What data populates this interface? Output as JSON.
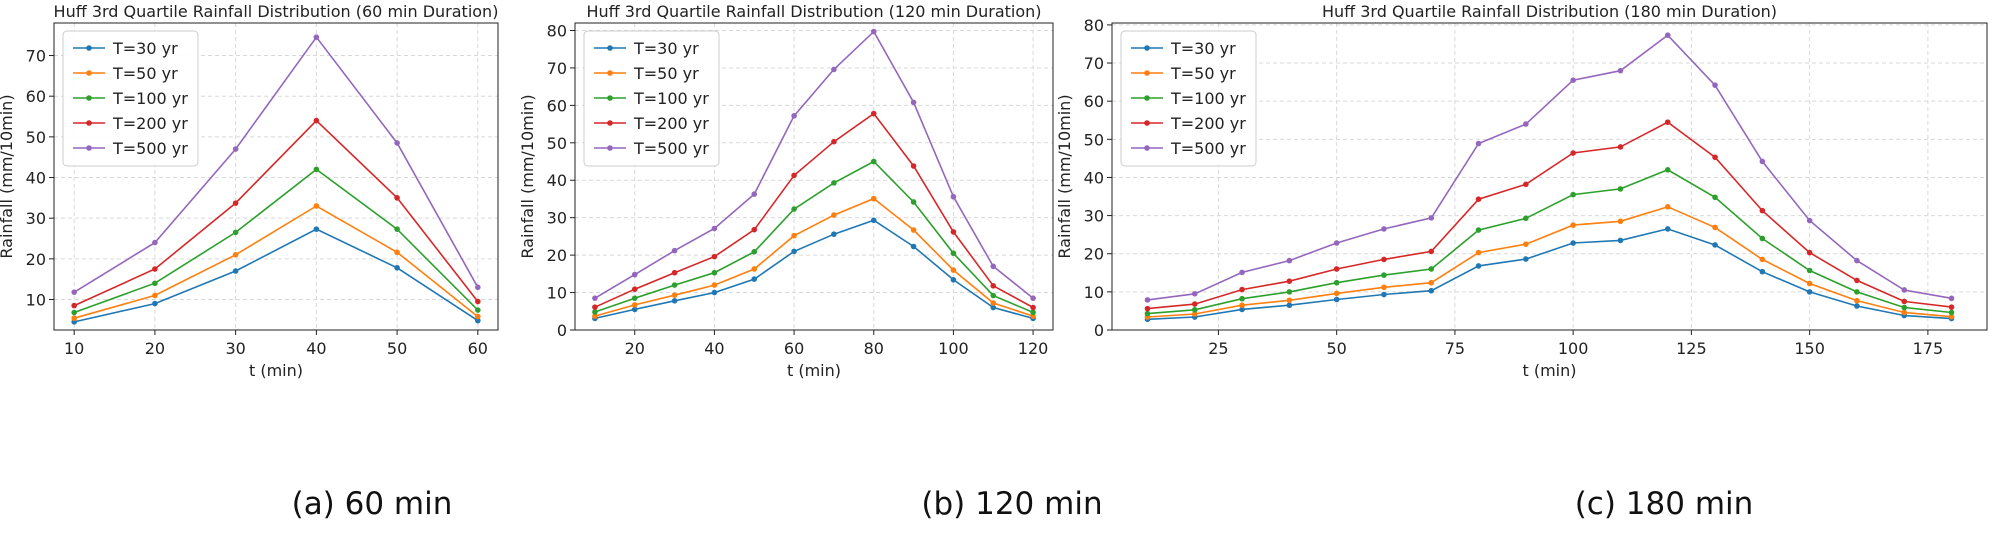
{
  "chart_data": [
    {
      "type": "line",
      "title": "Huff 3rd Quartile Rainfall Distribution (60 min Duration)",
      "xlabel": "t (min)",
      "ylabel": "Rainfall (mm/10min)",
      "caption": "(a) 60 min",
      "x": [
        10,
        20,
        30,
        40,
        50,
        60
      ],
      "xlim": [
        7.5,
        62.5
      ],
      "ylim": [
        2.5,
        78
      ],
      "xticks": [
        10,
        20,
        30,
        40,
        50,
        60
      ],
      "yticks": [
        10,
        20,
        30,
        40,
        50,
        60,
        70
      ],
      "grid": true,
      "legend_position": "top-left",
      "series": [
        {
          "name": "T=30 yr",
          "color": "#1f77b4",
          "values": [
            4.5,
            9,
            17,
            27.3,
            17.8,
            4.8
          ]
        },
        {
          "name": "T=50 yr",
          "color": "#ff7f0e",
          "values": [
            5.4,
            11,
            21,
            33,
            21.6,
            5.8
          ]
        },
        {
          "name": "T=100 yr",
          "color": "#2ca02c",
          "values": [
            6.8,
            14,
            26.5,
            42,
            27.3,
            7.4
          ]
        },
        {
          "name": "T=200 yr",
          "color": "#d62728",
          "values": [
            8.5,
            17.5,
            33.7,
            54,
            35,
            9.5
          ]
        },
        {
          "name": "T=500 yr",
          "color": "#9467bd",
          "values": [
            11.8,
            24,
            47,
            74.5,
            48.5,
            13
          ]
        }
      ]
    },
    {
      "type": "line",
      "title": "Huff 3rd Quartile Rainfall Distribution (120 min Duration)",
      "xlabel": "t (min)",
      "ylabel": "Rainfall (mm/10min)",
      "caption": "(b) 120 min",
      "x": [
        10,
        20,
        30,
        40,
        50,
        60,
        70,
        80,
        90,
        100,
        110,
        120
      ],
      "xlim": [
        5,
        125
      ],
      "ylim": [
        0,
        82
      ],
      "xticks": [
        20,
        40,
        60,
        80,
        100,
        120
      ],
      "yticks": [
        0,
        10,
        20,
        30,
        40,
        50,
        60,
        70,
        80
      ],
      "grid": true,
      "legend_position": "top-left",
      "series": [
        {
          "name": "T=30 yr",
          "color": "#1f77b4",
          "values": [
            3.1,
            5.5,
            7.8,
            10,
            13.6,
            21,
            25.6,
            29.3,
            22.3,
            13.4,
            6,
            3.1
          ]
        },
        {
          "name": "T=50 yr",
          "color": "#ff7f0e",
          "values": [
            3.7,
            6.7,
            9.3,
            12,
            16.3,
            25.2,
            30.7,
            35.1,
            26.7,
            16,
            7.2,
            3.7
          ]
        },
        {
          "name": "T=100 yr",
          "color": "#2ca02c",
          "values": [
            4.8,
            8.5,
            12,
            15.3,
            20.9,
            32.3,
            39.3,
            45,
            34.2,
            20.5,
            9.2,
            4.7
          ]
        },
        {
          "name": "T=200 yr",
          "color": "#d62728",
          "values": [
            6.1,
            10.9,
            15.3,
            19.6,
            26.8,
            41.3,
            50.3,
            57.8,
            43.8,
            26.2,
            11.8,
            6
          ]
        },
        {
          "name": "T=500 yr",
          "color": "#9467bd",
          "values": [
            8.5,
            14.8,
            21.2,
            27.1,
            36.3,
            57.2,
            69.6,
            79.7,
            60.8,
            35.6,
            17,
            8.5
          ]
        }
      ]
    },
    {
      "type": "line",
      "title": "Huff 3rd Quartile Rainfall Distribution (180 min Duration)",
      "xlabel": "t (min)",
      "ylabel": "Rainfall (mm/10min)",
      "caption": "(c) 180 min",
      "x": [
        10,
        20,
        30,
        40,
        50,
        60,
        70,
        80,
        90,
        100,
        110,
        120,
        130,
        140,
        150,
        160,
        170,
        180
      ],
      "xlim": [
        2.5,
        187.5
      ],
      "ylim": [
        0,
        80.5
      ],
      "xticks": [
        25,
        50,
        75,
        100,
        125,
        150,
        175
      ],
      "yticks": [
        0,
        10,
        20,
        30,
        40,
        50,
        60,
        70,
        80
      ],
      "grid": true,
      "legend_position": "top-left",
      "series": [
        {
          "name": "T=30 yr",
          "color": "#1f77b4",
          "values": [
            2.8,
            3.4,
            5.4,
            6.5,
            8,
            9.3,
            10.3,
            16.8,
            18.6,
            22.8,
            23.5,
            26.5,
            22.3,
            15.3,
            10,
            6.3,
            3.8,
            3
          ]
        },
        {
          "name": "T=50 yr",
          "color": "#ff7f0e",
          "values": [
            3.4,
            4.2,
            6.5,
            7.8,
            9.6,
            11.2,
            12.4,
            20.3,
            22.5,
            27.5,
            28.5,
            32.3,
            26.9,
            18.5,
            12.2,
            7.7,
            4.6,
            3.5
          ]
        },
        {
          "name": "T=100 yr",
          "color": "#2ca02c",
          "values": [
            4.3,
            5.3,
            8.2,
            10,
            12.4,
            14.4,
            16,
            26.2,
            29.3,
            35.5,
            37,
            42,
            34.8,
            24,
            15.6,
            10,
            5.9,
            4.6
          ]
        },
        {
          "name": "T=200 yr",
          "color": "#d62728",
          "values": [
            5.6,
            6.8,
            10.6,
            12.8,
            16,
            18.5,
            20.6,
            34.3,
            38.2,
            46.4,
            48,
            54.5,
            45.3,
            31.3,
            20.3,
            13,
            7.5,
            6
          ]
        },
        {
          "name": "T=500 yr",
          "color": "#9467bd",
          "values": [
            7.9,
            9.5,
            15.1,
            18.2,
            22.8,
            26.5,
            29.4,
            48.9,
            54,
            65.5,
            68,
            77.3,
            64.2,
            44.2,
            28.7,
            18.2,
            10.5,
            8.3
          ]
        }
      ]
    }
  ]
}
